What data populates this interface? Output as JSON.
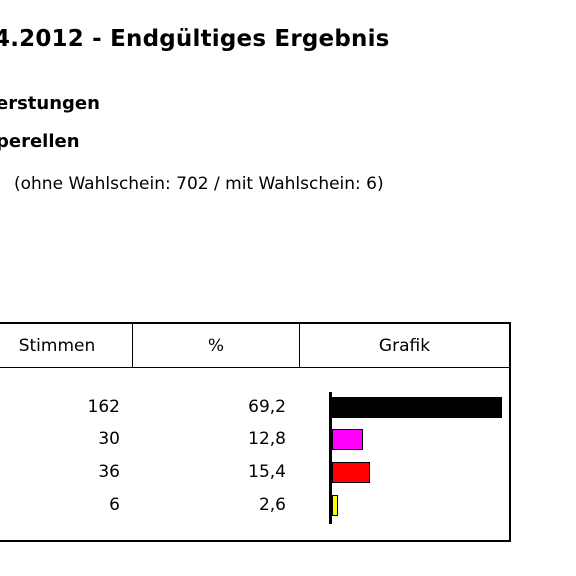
{
  "header": {
    "title": "4.2012 - Endgültiges Ergebnis",
    "subtitle_1": "erstungen",
    "subtitle_2": "perellen",
    "voters_note": "(ohne Wahlschein: 702 / mit Wahlschein: 6)"
  },
  "table": {
    "columns": {
      "stimmen": "Stimmen",
      "percent": "%",
      "grafik": "Grafik"
    },
    "rows": [
      {
        "votes": "162",
        "percent": "69,2",
        "percent_value": 69.2,
        "color": "#000000"
      },
      {
        "votes": "30",
        "percent": "12,8",
        "percent_value": 12.8,
        "color": "#ff00ff"
      },
      {
        "votes": "36",
        "percent": "15,4",
        "percent_value": 15.4,
        "color": "#ff0000"
      },
      {
        "votes": "6",
        "percent": "2,6",
        "percent_value": 2.6,
        "color": "#ffff00"
      }
    ]
  }
}
